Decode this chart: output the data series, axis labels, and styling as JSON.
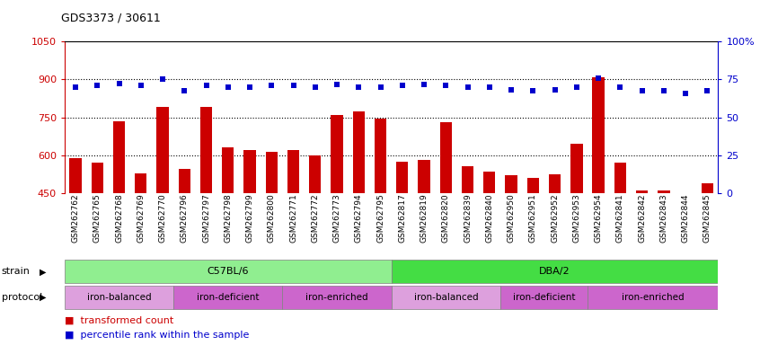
{
  "title": "GDS3373 / 30611",
  "samples": [
    "GSM262762",
    "GSM262765",
    "GSM262768",
    "GSM262769",
    "GSM262770",
    "GSM262796",
    "GSM262797",
    "GSM262798",
    "GSM262799",
    "GSM262800",
    "GSM262771",
    "GSM262772",
    "GSM262773",
    "GSM262794",
    "GSM262795",
    "GSM262817",
    "GSM262819",
    "GSM262820",
    "GSM262839",
    "GSM262840",
    "GSM262950",
    "GSM262951",
    "GSM262952",
    "GSM262953",
    "GSM262954",
    "GSM262841",
    "GSM262842",
    "GSM262843",
    "GSM262844",
    "GSM262845"
  ],
  "bar_values": [
    590,
    572,
    735,
    530,
    790,
    545,
    790,
    630,
    620,
    615,
    620,
    600,
    760,
    775,
    745,
    575,
    580,
    730,
    555,
    535,
    520,
    510,
    525,
    645,
    910,
    570,
    460,
    460,
    445,
    490
  ],
  "dot_values": [
    870,
    875,
    885,
    875,
    900,
    855,
    875,
    870,
    870,
    875,
    875,
    870,
    880,
    870,
    870,
    875,
    880,
    875,
    870,
    870,
    860,
    855,
    860,
    870,
    905,
    870,
    855,
    855,
    845,
    855
  ],
  "ylim_left": [
    450,
    1050
  ],
  "ylim_right": [
    0,
    100
  ],
  "yticks_left": [
    450,
    600,
    750,
    900,
    1050
  ],
  "yticks_right": [
    0,
    25,
    50,
    75,
    100
  ],
  "bar_color": "#CC0000",
  "dot_color": "#0000CC",
  "strain_groups": [
    {
      "label": "C57BL/6",
      "start": 0,
      "end": 14,
      "color": "#90EE90"
    },
    {
      "label": "DBA/2",
      "start": 15,
      "end": 29,
      "color": "#44DD44"
    }
  ],
  "protocol_groups": [
    {
      "label": "iron-balanced",
      "start": 0,
      "end": 4,
      "color": "#DDA0DD"
    },
    {
      "label": "iron-deficient",
      "start": 5,
      "end": 9,
      "color": "#CC66CC"
    },
    {
      "label": "iron-enriched",
      "start": 10,
      "end": 14,
      "color": "#CC66CC"
    },
    {
      "label": "iron-balanced",
      "start": 15,
      "end": 19,
      "color": "#DDA0DD"
    },
    {
      "label": "iron-deficient",
      "start": 20,
      "end": 23,
      "color": "#CC66CC"
    },
    {
      "label": "iron-enriched",
      "start": 24,
      "end": 29,
      "color": "#CC66CC"
    }
  ]
}
